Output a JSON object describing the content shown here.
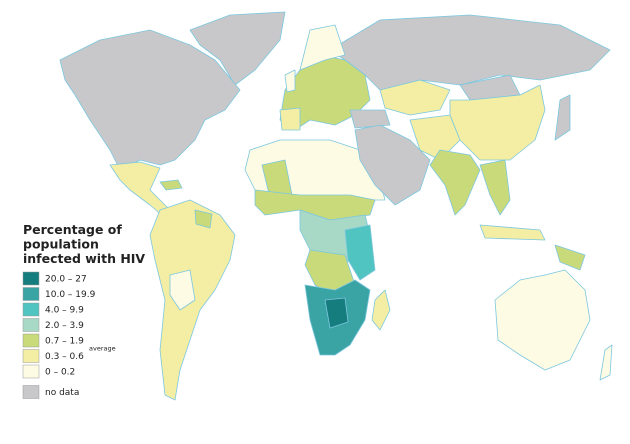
{
  "legend": {
    "title_lines": [
      "Percentage of",
      "population",
      "infected with HIV"
    ],
    "items": [
      {
        "label": "20.0 – 27",
        "color": "#167d7f"
      },
      {
        "label": "10.0 – 19.9",
        "color": "#3aa3a4"
      },
      {
        "label": "4.0 – 9.9",
        "color": "#50c4c0"
      },
      {
        "label": "2.0 – 3.9",
        "color": "#a8d9c6"
      },
      {
        "label": "0.7 – 1.9",
        "color": "#c9da7a"
      },
      {
        "label": "0.3 – 0.6",
        "color": "#f3eea3"
      },
      {
        "label": "0 – 0.2",
        "color": "#fdfbe4"
      }
    ],
    "average_note": "average",
    "no_data": {
      "label": "no data",
      "color": "#c8c8ca"
    }
  }
}
